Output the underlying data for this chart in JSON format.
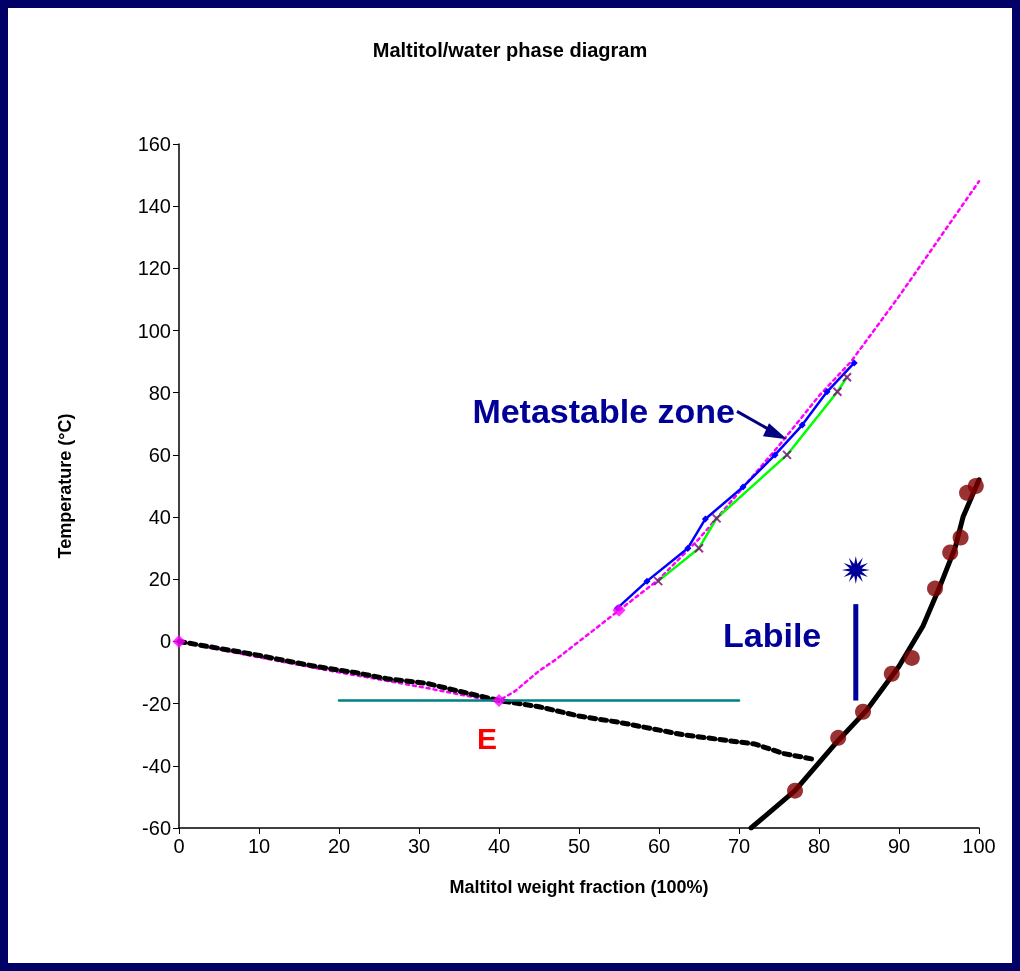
{
  "chart_data": {
    "type": "line",
    "title": "Maltitol/water phase diagram",
    "xlabel": "Maltitol weight fraction (100%)",
    "ylabel": "Temperature (°C)",
    "xlim": [
      0,
      100
    ],
    "xticks": [
      0,
      10,
      20,
      30,
      40,
      50,
      60,
      70,
      80,
      90,
      100
    ],
    "ylim": [
      -60,
      160
    ],
    "yticks": [
      -60,
      -40,
      -20,
      0,
      20,
      40,
      60,
      80,
      100,
      120,
      140,
      160
    ],
    "grid": false,
    "annotations": [
      {
        "text": "Metastable zone",
        "x": 76,
        "y": 65
      },
      "Labile",
      {
        "text": "E",
        "x": 40,
        "y": -19
      }
    ],
    "series": [
      {
        "color": "#ff00ff",
        "line_style": "dotted",
        "marker": "none",
        "x": [
          0,
          9,
          18,
          30,
          38,
          40,
          42,
          45,
          47,
          51.7,
          55,
          60,
          65,
          70,
          75,
          80,
          84,
          90,
          100
        ],
        "values": [
          0,
          -4.6,
          -9,
          -14.5,
          -18.5,
          -19,
          -16,
          -9.5,
          -6,
          3.4,
          10,
          20,
          33,
          48,
          63,
          79,
          90,
          111,
          148
        ]
      },
      {
        "color": "#000000",
        "line_style": "dashed",
        "marker": "none",
        "x": [
          0,
          9,
          13,
          17,
          22,
          26,
          31,
          35,
          40,
          45,
          50,
          55,
          63,
          72,
          75.5,
          79.5
        ],
        "values": [
          0,
          -4,
          -6,
          -8,
          -10,
          -12,
          -13.5,
          -16,
          -19,
          -21,
          -24,
          -26,
          -30,
          -33,
          -36,
          -38
        ]
      },
      {
        "type": "scatter",
        "color": "#ff00ff",
        "marker": "diamond",
        "x": [
          0,
          40,
          55
        ],
        "values": [
          0,
          -19,
          10
        ]
      },
      {
        "color": "#000000",
        "line_style": "solid",
        "marker": "none",
        "x": [
          71.5,
          77,
          82,
          86,
          90,
          93,
          95,
          97,
          98,
          100
        ],
        "values": [
          -60,
          -48,
          -33,
          -22,
          -8,
          5,
          17,
          30,
          40,
          52
        ]
      },
      {
        "type": "scatter",
        "color": "#800000",
        "marker": "circle",
        "x": [
          77,
          82.4,
          85.5,
          89.1,
          91.6,
          94.5,
          96.4,
          97.7,
          98.5,
          99.6
        ],
        "values": [
          -48,
          -31,
          -22.6,
          -10.4,
          -5.3,
          17,
          28.6,
          33.4,
          47.8,
          50
        ]
      },
      {
        "color": "#0000ff",
        "line_style": "solid",
        "marker": "diamond",
        "x": [
          54.8,
          58.5,
          63.6,
          65.8,
          70.5,
          74.5,
          77.9,
          81,
          84.4
        ],
        "values": [
          10.7,
          19.4,
          30,
          39.4,
          49.7,
          60,
          69.6,
          80.3,
          89.6
        ]
      },
      {
        "color": "#00ff00",
        "line_style": "solid",
        "marker": "none",
        "x": [
          59.9,
          65,
          67.2,
          76,
          82.3,
          83.5
        ],
        "values": [
          19.4,
          30,
          39.6,
          60,
          80.3,
          85
        ]
      },
      {
        "type": "scatter",
        "color": "#800080",
        "marker": "cross",
        "x": [
          59.9,
          65,
          67.2,
          76,
          82.3,
          83.5
        ],
        "values": [
          19.4,
          30,
          39.6,
          60,
          80.3,
          85
        ]
      },
      {
        "color": "#008080",
        "line_style": "solid",
        "marker": "none",
        "x": [
          20,
          70
        ],
        "values": [
          -19,
          -19
        ]
      }
    ]
  }
}
